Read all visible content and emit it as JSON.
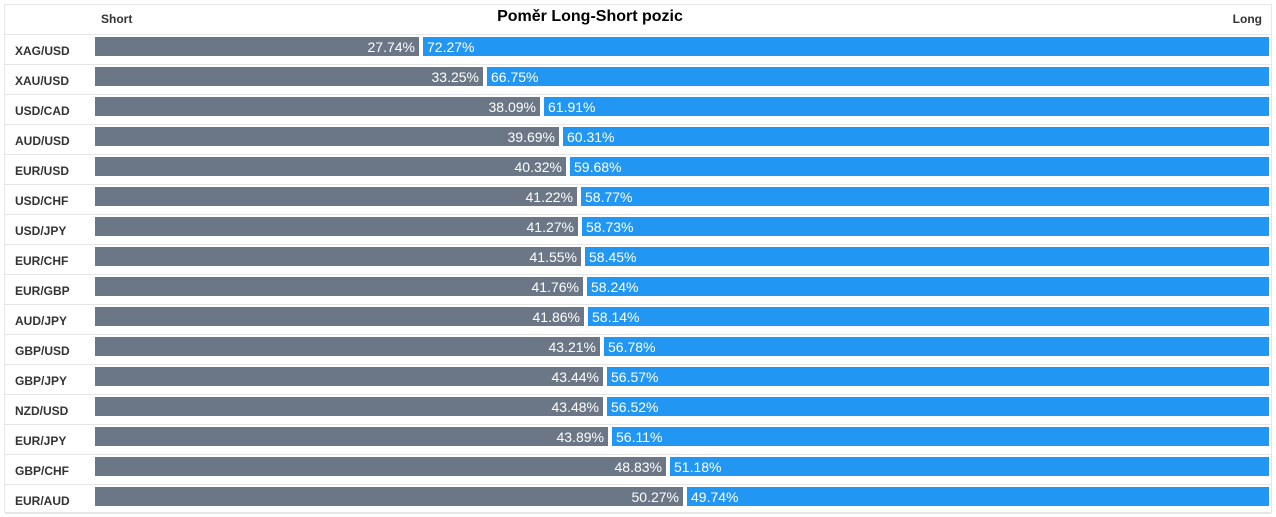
{
  "header": {
    "short_label": "Short",
    "long_label": "Long"
  },
  "chart_data": {
    "type": "bar",
    "title": "Poměr Long-Short pozic",
    "categories": [
      "XAG/USD",
      "XAU/USD",
      "USD/CAD",
      "AUD/USD",
      "EUR/USD",
      "USD/CHF",
      "USD/JPY",
      "EUR/CHF",
      "EUR/GBP",
      "AUD/JPY",
      "GBP/USD",
      "GBP/JPY",
      "NZD/USD",
      "EUR/JPY",
      "GBP/CHF",
      "EUR/AUD"
    ],
    "series": [
      {
        "name": "Short",
        "values": [
          27.74,
          33.25,
          38.09,
          39.69,
          40.32,
          41.22,
          41.27,
          41.55,
          41.76,
          41.86,
          43.21,
          43.44,
          43.48,
          43.89,
          48.83,
          50.27
        ],
        "labels": [
          "27.74%",
          "33.25%",
          "38.09%",
          "39.69%",
          "40.32%",
          "41.22%",
          "41.27%",
          "41.55%",
          "41.76%",
          "41.86%",
          "43.21%",
          "43.44%",
          "43.48%",
          "43.89%",
          "48.83%",
          "50.27%"
        ]
      },
      {
        "name": "Long",
        "values": [
          72.27,
          66.75,
          61.91,
          60.31,
          59.68,
          58.77,
          58.73,
          58.45,
          58.24,
          58.14,
          56.78,
          56.57,
          56.52,
          56.11,
          51.18,
          49.74
        ],
        "labels": [
          "72.27%",
          "66.75%",
          "61.91%",
          "60.31%",
          "59.68%",
          "58.77%",
          "58.73%",
          "58.45%",
          "58.24%",
          "58.14%",
          "56.78%",
          "56.57%",
          "56.52%",
          "56.11%",
          "51.18%",
          "49.74%"
        ]
      }
    ],
    "stacked": true,
    "orientation": "horizontal",
    "colors": {
      "short": "#6b7786",
      "long": "#2196f3"
    }
  }
}
